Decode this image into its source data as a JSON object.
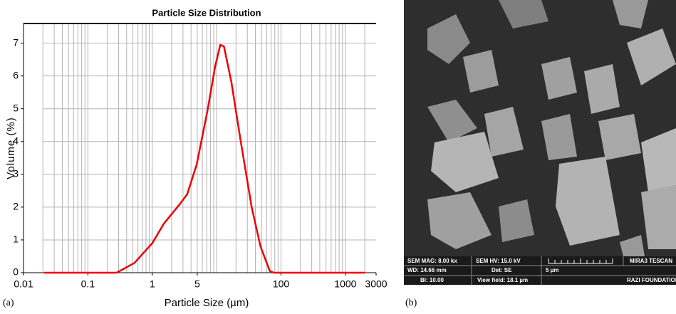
{
  "chart_data": {
    "type": "line",
    "title": "Particle Size Distribution",
    "xlabel": "Particle Size (µm)",
    "ylabel": "Volume (%)",
    "xscale": "log",
    "xlim": [
      0.01,
      3000
    ],
    "xticks": [
      0.01,
      0.1,
      1,
      5,
      100,
      1000,
      3000
    ],
    "x_grid_lines": [
      0.02,
      0.03,
      0.04,
      0.05,
      0.06,
      0.07,
      0.08,
      0.09,
      0.1,
      0.2,
      0.3,
      0.4,
      0.5,
      0.6,
      0.7,
      0.8,
      0.9,
      1,
      2,
      3,
      4,
      5,
      6,
      7,
      8,
      9,
      10,
      20,
      30,
      40,
      50,
      60,
      70,
      80,
      90,
      100,
      200,
      300,
      400,
      500,
      600,
      700,
      800,
      900,
      1000,
      2000
    ],
    "ylim": [
      0,
      7.6
    ],
    "yticks": [
      0,
      1,
      2,
      3,
      4,
      5,
      6,
      7
    ],
    "grid": true,
    "color": "#ee0000",
    "x": [
      0.021,
      0.28,
      0.53,
      1,
      1.52,
      2.7,
      3.5,
      4.9,
      7.3,
      9.5,
      11.4,
      13,
      17,
      23.7,
      35,
      48,
      67,
      77,
      2000
    ],
    "values": [
      0,
      0,
      0.3,
      0.9,
      1.5,
      2.1,
      2.4,
      3.3,
      5.0,
      6.3,
      6.95,
      6.9,
      5.8,
      4.0,
      2.0,
      0.8,
      0.05,
      0,
      0
    ]
  },
  "panel_labels": [
    "(a)",
    "(b)"
  ],
  "sem_info": {
    "mag": "SEM MAG: 8.00 kx",
    "hv": "SEM HV: 15.0 kV",
    "wd": "WD: 14.66 mm",
    "det": "Det: SE",
    "bi": "BI: 10.00",
    "view": "View field: 18.1 µm",
    "scale": "5 µm",
    "brand": "MIRA3 TESCAN",
    "org": "RAZI FOUNDATION"
  }
}
